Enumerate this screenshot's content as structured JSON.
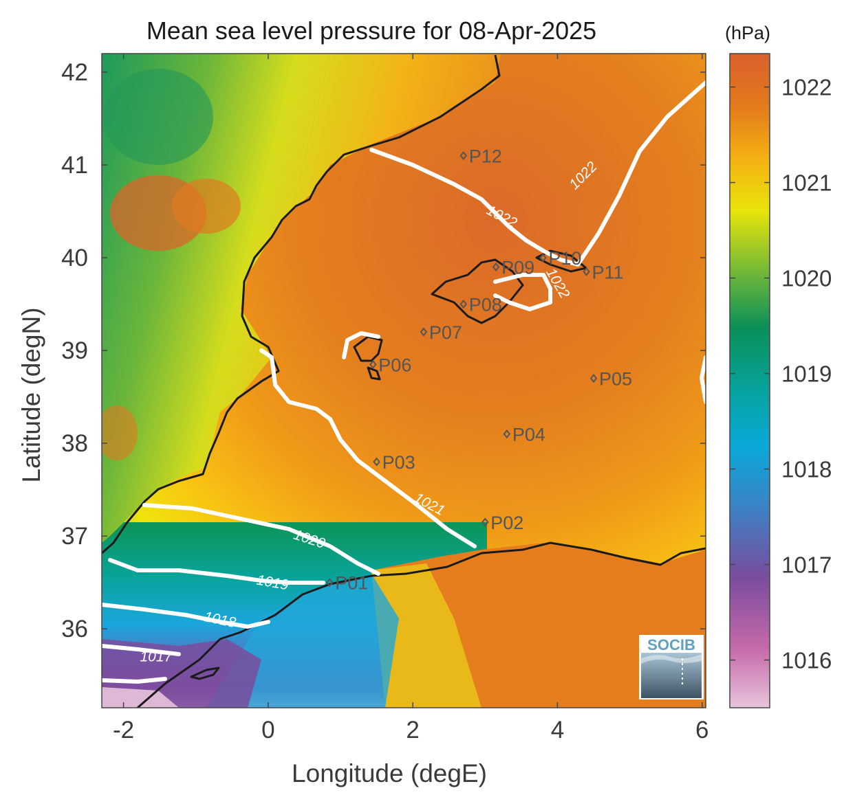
{
  "title": "Mean sea level pressure for 08-Apr-2025",
  "xlabel": "Longitude (degE)",
  "ylabel": "Latitude (degN)",
  "colorbar_unit": "(hPa)",
  "logo_text": "SOCIB",
  "x_ticks": [
    "-2",
    "0",
    "2",
    "4",
    "6"
  ],
  "y_ticks": [
    "42",
    "41",
    "40",
    "39",
    "38",
    "37",
    "36"
  ],
  "colorbar_ticks": [
    "1022",
    "1021",
    "1020",
    "1019",
    "1018",
    "1017",
    "1016"
  ],
  "colormap": [
    "#e8c4dc",
    "#c66aa9",
    "#7a4c9e",
    "#3f7fc2",
    "#0aa9d9",
    "#07a29a",
    "#0a8f58",
    "#6ab53a",
    "#e9e40a",
    "#f4b012",
    "#e37a1c",
    "#d9602c"
  ],
  "chart_data": {
    "type": "heatmap",
    "title": "Mean sea level pressure for 08-Apr-2025",
    "xlabel": "Longitude (degE)",
    "ylabel": "Latitude (degN)",
    "xlim": [
      -2.3,
      6.05
    ],
    "ylim": [
      35.15,
      42.2
    ],
    "colorbar_range": [
      1015.5,
      1022.35
    ],
    "stations": [
      {
        "name": "P01",
        "lon": 0.85,
        "lat": 36.5
      },
      {
        "name": "P02",
        "lon": 3.0,
        "lat": 37.15
      },
      {
        "name": "P03",
        "lon": 1.5,
        "lat": 37.8
      },
      {
        "name": "P04",
        "lon": 3.3,
        "lat": 38.1
      },
      {
        "name": "P05",
        "lon": 4.5,
        "lat": 38.7
      },
      {
        "name": "P06",
        "lon": 1.45,
        "lat": 38.85
      },
      {
        "name": "P07",
        "lon": 2.15,
        "lat": 39.2
      },
      {
        "name": "P08",
        "lon": 2.7,
        "lat": 39.5
      },
      {
        "name": "P09",
        "lon": 3.15,
        "lat": 39.9
      },
      {
        "name": "P10",
        "lon": 3.8,
        "lat": 40.0
      },
      {
        "name": "P11",
        "lon": 4.4,
        "lat": 39.85
      },
      {
        "name": "P12",
        "lon": 2.7,
        "lat": 41.1
      }
    ],
    "contour_levels": [
      {
        "label": "1022",
        "lon": 4.4,
        "lat": 40.85,
        "rotate": -45
      },
      {
        "label": "1022",
        "lon": 3.2,
        "lat": 40.4,
        "rotate": 28
      },
      {
        "label": "1022",
        "lon": 3.95,
        "lat": 39.7,
        "rotate": 60
      },
      {
        "label": "1021",
        "lon": 2.2,
        "lat": 37.3,
        "rotate": 28
      },
      {
        "label": "1020",
        "lon": 0.55,
        "lat": 36.92,
        "rotate": 18
      },
      {
        "label": "1019",
        "lon": 0.05,
        "lat": 36.45,
        "rotate": 10
      },
      {
        "label": "1018",
        "lon": -0.68,
        "lat": 36.05,
        "rotate": 12
      },
      {
        "label": "1017",
        "lon": -1.55,
        "lat": 35.65,
        "rotate": 0
      }
    ]
  }
}
